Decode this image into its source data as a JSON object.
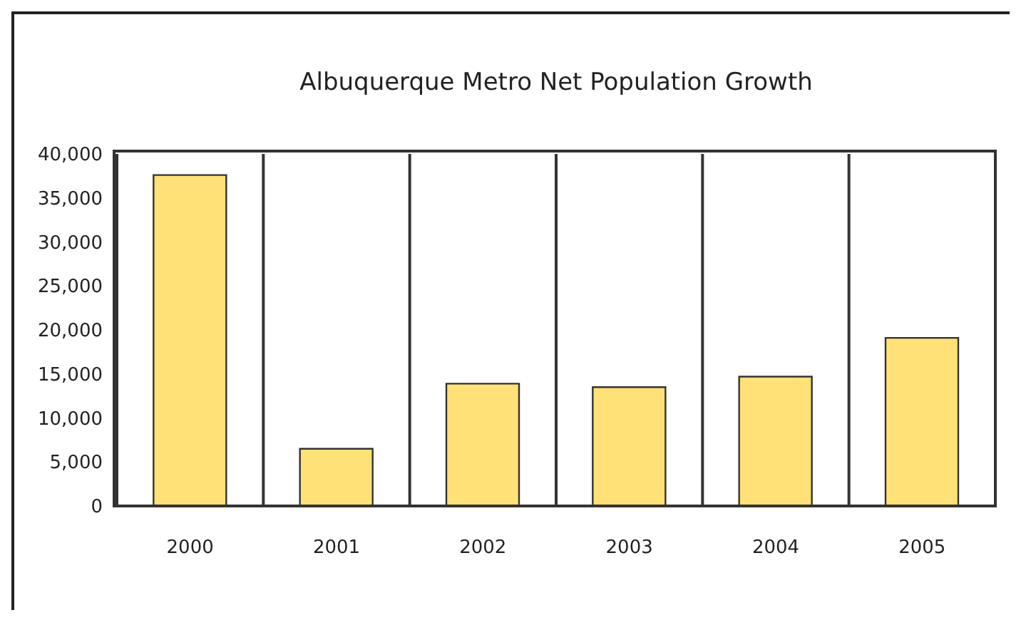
{
  "chart_data": {
    "type": "bar",
    "title": "Albuquerque Metro Net Population Growth",
    "categories": [
      "2000",
      "2001",
      "2002",
      "2003",
      "2004",
      "2005"
    ],
    "values": [
      37600,
      6500,
      13900,
      13500,
      14700,
      19100
    ],
    "color": "#ffe177",
    "ylim": [
      0,
      40000
    ],
    "yticks": [
      {
        "value": 0,
        "label": "0"
      },
      {
        "value": 5000,
        "label": "5,000"
      },
      {
        "value": 10000,
        "label": "10,000"
      },
      {
        "value": 15000,
        "label": "15,000"
      },
      {
        "value": 20000,
        "label": "20,000"
      },
      {
        "value": 25000,
        "label": "25,000"
      },
      {
        "value": 30000,
        "label": "30,000"
      },
      {
        "value": 35000,
        "label": "35,000"
      },
      {
        "value": 40000,
        "label": "40,000"
      }
    ],
    "grid": "x",
    "legend": false
  }
}
